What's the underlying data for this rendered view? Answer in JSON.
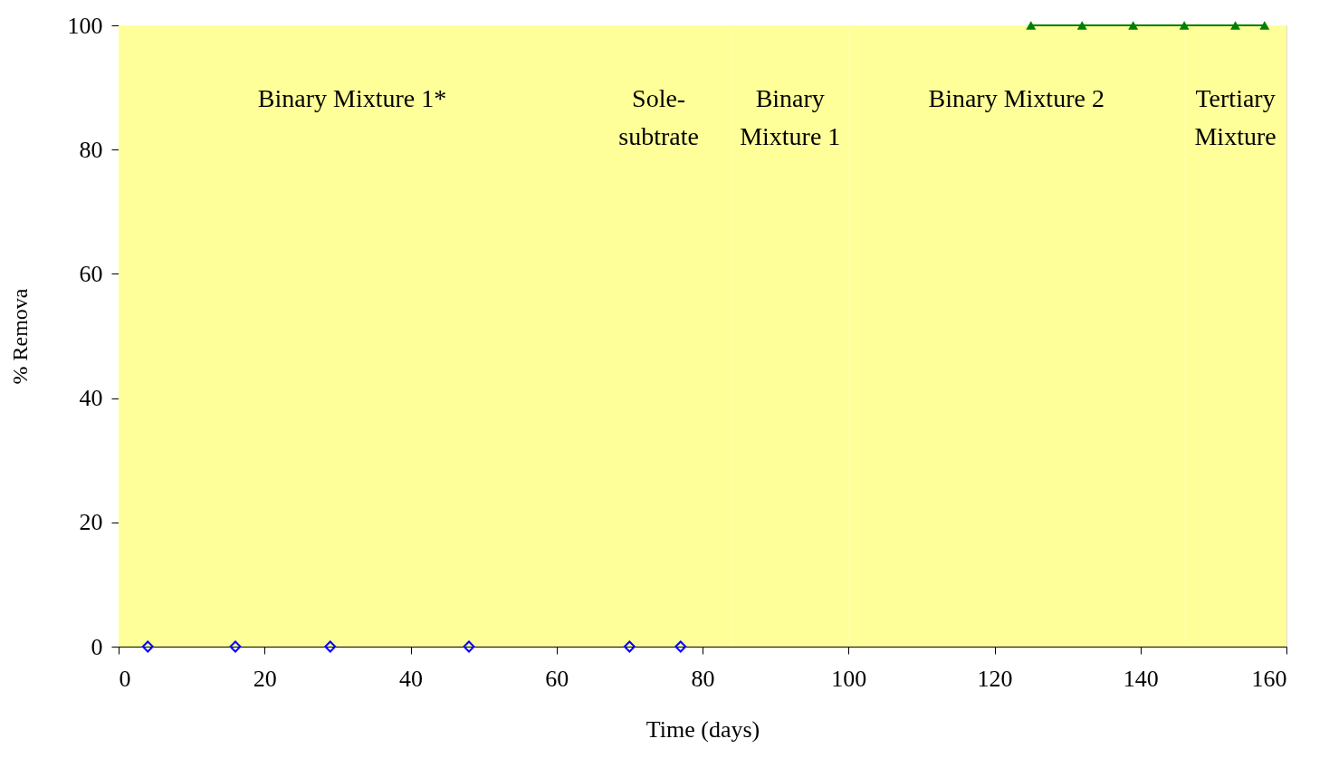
{
  "chart_data": {
    "type": "scatter",
    "xlabel": "Time (days)",
    "ylabel": "% Remova",
    "xlim": [
      0,
      160
    ],
    "xticks": [
      0,
      20,
      40,
      60,
      80,
      100,
      120,
      140,
      160
    ],
    "ylim": [
      0,
      100
    ],
    "yticks": [
      0,
      20,
      40,
      60,
      80,
      100
    ],
    "grid": false,
    "bands": [
      {
        "axis": "x",
        "from": 0,
        "to": 64,
        "label": "Binary Mixture 1*",
        "color": "#ffff99"
      },
      {
        "axis": "x",
        "from": 64,
        "to": 84,
        "label": "Sole-\nsubtrate",
        "color": "#ffff99"
      },
      {
        "axis": "x",
        "from": 84,
        "to": 100,
        "label": "Binary\nMixture 1",
        "color": "#ffff99"
      },
      {
        "axis": "x",
        "from": 100,
        "to": 146,
        "label": "Binary Mixture 2",
        "color": "#ffff99"
      },
      {
        "axis": "x",
        "from": 146,
        "to": 160,
        "label": "Tertiary\nMixture",
        "color": "#ffff99"
      }
    ],
    "series": [
      {
        "color": "#0000ff",
        "marker": "diamond",
        "x": [
          4,
          16,
          29,
          48,
          70,
          77
        ],
        "values": [
          0,
          0,
          0,
          0,
          0,
          0
        ]
      },
      {
        "type": "line",
        "color": "#008000",
        "marker": "triangle",
        "x": [
          125,
          132,
          139,
          146,
          153,
          157
        ],
        "values": [
          100,
          100,
          100,
          100,
          100,
          100
        ]
      }
    ]
  }
}
